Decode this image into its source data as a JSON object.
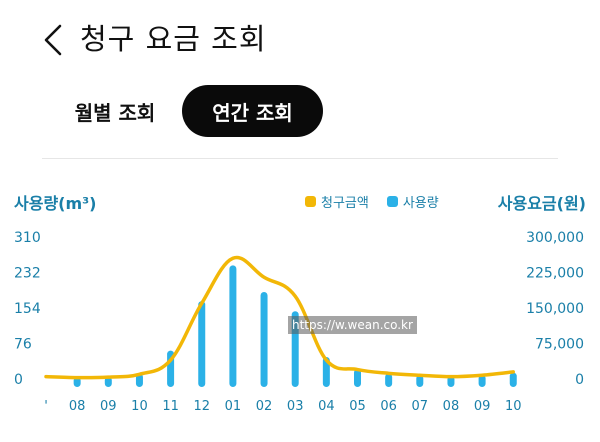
{
  "header": {
    "back_icon": "chevron-left-icon",
    "title": "청구 요금 조회"
  },
  "tabs": [
    {
      "label": "월별 조회",
      "selected": false
    },
    {
      "label": "연간 조회",
      "selected": true
    }
  ],
  "watermark": "https://w.wean.co.kr",
  "chart_data": {
    "type": "bar+line",
    "legend": [
      {
        "name": "청구금액",
        "color": "#f2b707"
      },
      {
        "name": "사용량",
        "color": "#2bb1e7"
      }
    ],
    "ylabel_left": "사용량(m³)",
    "ylabel_right": "사용요금(원)",
    "left_ticks": [
      "310",
      "232",
      "154",
      "76",
      "0"
    ],
    "right_ticks": [
      "300,000",
      "225,000",
      "150,000",
      "75,000",
      "0"
    ],
    "ylim_left": [
      0,
      310
    ],
    "ylim_right": [
      0,
      300000
    ],
    "categories": [
      "'",
      "08",
      "09",
      "10",
      "11",
      "12",
      "01",
      "02",
      "03",
      "04",
      "05",
      "06",
      "07",
      "08",
      "09",
      "10"
    ],
    "series": [
      {
        "name": "사용량",
        "type": "bar",
        "values": [
          null,
          4,
          5,
          12,
          62,
          170,
          248,
          190,
          148,
          48,
          22,
          12,
          9,
          7,
          9,
          14
        ]
      },
      {
        "name": "청구금액",
        "type": "line",
        "values": [
          5000,
          3000,
          4000,
          10000,
          40000,
          160000,
          255000,
          215000,
          175000,
          40000,
          20000,
          12000,
          8000,
          5000,
          8000,
          15000
        ]
      }
    ],
    "grid": false,
    "legend_position": "top-right"
  }
}
